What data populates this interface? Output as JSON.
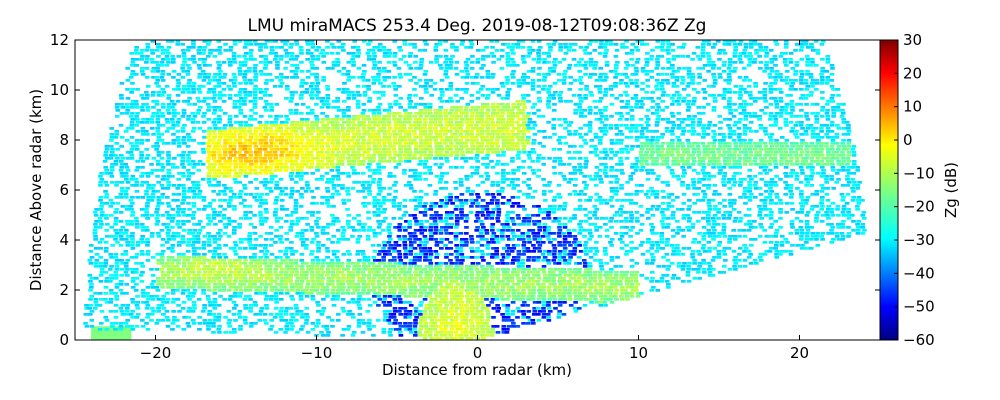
{
  "chart_data": {
    "type": "heatmap",
    "title": "LMU miraMACS 253.4 Deg. 2019-08-12T09:08:36Z  Zg",
    "xlabel": "Distance from radar (km)",
    "ylabel": "Distance Above radar  (km)",
    "xlim": [
      -25,
      25
    ],
    "ylim": [
      0,
      12
    ],
    "x_ticks": [
      -20,
      -10,
      0,
      10,
      20
    ],
    "x_tick_labels": [
      "−20",
      "−10",
      "0",
      "10",
      "20"
    ],
    "y_ticks": [
      0,
      2,
      4,
      6,
      8,
      10,
      12
    ],
    "y_tick_labels": [
      "0",
      "2",
      "4",
      "6",
      "8",
      "10",
      "12"
    ],
    "colorbar": {
      "label": "Zg (dB)",
      "range": [
        -60,
        30
      ],
      "colormap": "jet",
      "ticks": [
        30,
        20,
        10,
        0,
        -10,
        -20,
        -30,
        -40,
        -50,
        -60
      ],
      "tick_labels": [
        "30",
        "20",
        "10",
        "0",
        "−10",
        "−20",
        "−30",
        "−40",
        "−50",
        "−60"
      ]
    },
    "grid": false,
    "regions": [
      {
        "name": "background-noise",
        "typical_dB": -28
      },
      {
        "name": "upper-cloud-layer",
        "x_range": [
          -17,
          3
        ],
        "y_range": [
          6.5,
          9.6
        ],
        "typical_dB": -12,
        "peak_dB": 2
      },
      {
        "name": "upper-right-layer",
        "x_range": [
          10,
          23
        ],
        "y_range": [
          6.9,
          7.9
        ],
        "typical_dB": -20
      },
      {
        "name": "lower-cloud-layer",
        "x_range": [
          -20,
          10
        ],
        "y_range": [
          1.5,
          3.2
        ],
        "typical_dB": -18
      },
      {
        "name": "near-surface-echo",
        "x_range": [
          -4,
          1
        ],
        "y_range": [
          0,
          1.5
        ],
        "typical_dB": -12
      },
      {
        "name": "weak-clutter",
        "x_range": [
          -6,
          6
        ],
        "y_range": [
          0,
          6
        ],
        "typical_dB": -45
      }
    ]
  }
}
